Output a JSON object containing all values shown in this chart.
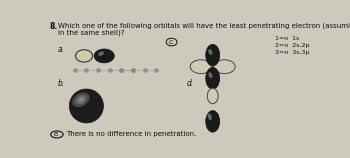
{
  "question_num": "8.",
  "question_text": "Which one of the following orbitals will have the least penetrating electron (assuming they are all\nin the same shell)?",
  "bg_color": "#cdc9bc",
  "text_color": "#111111",
  "dark_lobe": "#1a1a1a",
  "mid_lobe": "#555555",
  "light_lobe": "#aaaaaa",
  "highlight": "#888888",
  "label_a": "a.",
  "label_b": "b.",
  "label_c": "c.",
  "label_d": "d.",
  "label_e": "e.",
  "answer_e": "There is no difference in penetration.",
  "notes_line1": "1=n  1s",
  "notes_line2": "2=n  2s,2p",
  "notes_line3": "3=n  3s,3p"
}
